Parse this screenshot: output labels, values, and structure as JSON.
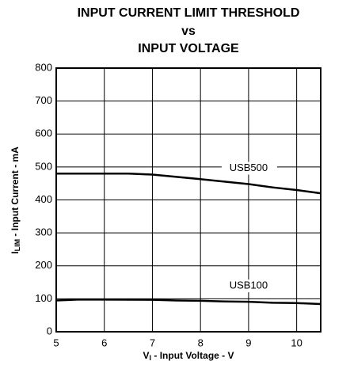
{
  "chart_data": {
    "type": "line",
    "title": [
      "INPUT CURRENT LIMIT THRESHOLD",
      "vs",
      "INPUT VOLTAGE"
    ],
    "x_label": {
      "symbol": "V",
      "subscript": "I",
      "text": " - Input Voltage - V"
    },
    "y_label": {
      "symbol": "I",
      "subscript": "LIM",
      "text": " - Input Current - mA"
    },
    "xlim": [
      5,
      10.5
    ],
    "xticks": [
      5,
      6,
      7,
      8,
      9,
      10
    ],
    "ylim": [
      0,
      800
    ],
    "yticks": [
      0,
      100,
      200,
      300,
      400,
      500,
      600,
      700,
      800
    ],
    "grid": true,
    "series": [
      {
        "name": "USB500",
        "color": "#000000",
        "x": [
          5,
          6.5,
          7,
          8,
          9,
          9.5,
          10,
          10.5
        ],
        "values": [
          480,
          480,
          477,
          463,
          448,
          438,
          430,
          420
        ]
      },
      {
        "name": "USB100",
        "color": "#000000",
        "x": [
          5,
          5.5,
          7,
          7.5,
          8,
          8.5,
          9,
          9.5,
          10,
          10.5
        ],
        "values": [
          95,
          98,
          97,
          95,
          94,
          92,
          91,
          88,
          87,
          84
        ]
      }
    ]
  }
}
